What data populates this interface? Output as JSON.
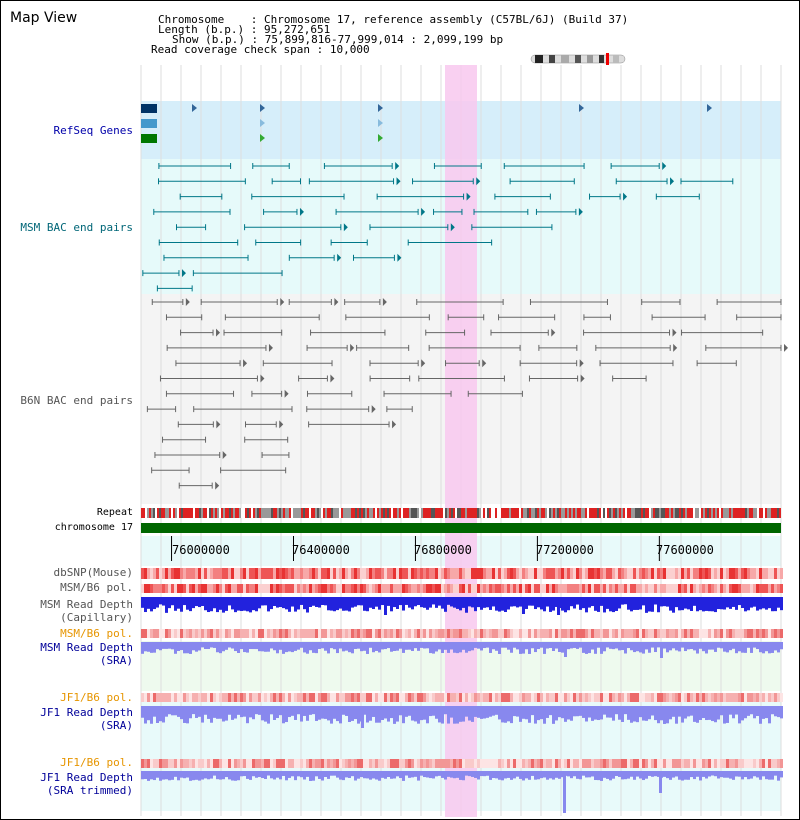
{
  "title": "Map View",
  "header": {
    "chromosome_label": "Chromosome",
    "chromosome_value": "Chromosome 17, reference assembly (C57BL/6J) (Build 37)",
    "length_label": "Length (b.p.)",
    "length_value": "95,272,651",
    "show_label": "Show (b.p.)",
    "show_value": "75,899,816-77,999,014 : 2,099,199 bp",
    "coverage_label": "Read coverage check span",
    "coverage_value": "10,000"
  },
  "tracks": {
    "refseq": "RefSeq Genes",
    "msm_bac": "MSM BAC end pairs",
    "b6n_bac": "B6N BAC end pairs",
    "repeat": "Repeat",
    "chromosome": "chromosome 17",
    "dbsnp": "dbSNP(Mouse)",
    "msm_b6_pol": "MSM/B6 pol.",
    "msm_depth_cap_1": "MSM Read Depth",
    "msm_depth_cap_2": "(Capillary)",
    "msm_b6_pol_2": "MSM/B6 pol.",
    "msm_depth_sra_1": "MSM Read Depth",
    "msm_depth_sra_2": "(SRA)",
    "jf1_b6_pol": "JF1/B6 pol.",
    "jf1_depth_sra_1": "JF1 Read Depth",
    "jf1_depth_sra_2": "(SRA)",
    "jf1_b6_pol_2": "JF1/B6 pol.",
    "jf1_depth_trim_1": "JF1 Read Depth",
    "jf1_depth_trim_2": "(SRA trimmed)"
  },
  "axis": {
    "ticks": [
      "76000000",
      "76400000",
      "76800000",
      "77200000",
      "77600000"
    ],
    "tick_values": [
      76000000,
      76400000,
      76800000,
      77200000,
      77600000
    ],
    "range": [
      75899816,
      77999014
    ]
  },
  "colors": {
    "highlight": "#f8c8ee",
    "refseq_bg": "#d6eefa",
    "bac_bg": "#e6fafa",
    "chrom": "#006600",
    "depth_blue": "#2222dd",
    "depth_light": "#8888ee",
    "pol_red": "#ee3333"
  }
}
